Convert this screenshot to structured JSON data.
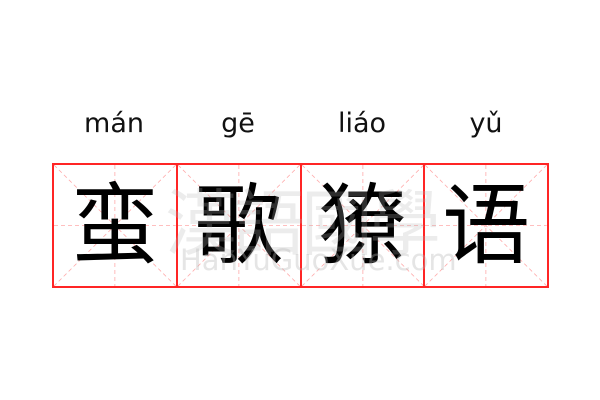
{
  "words": [
    {
      "pinyin": "mán",
      "hanzi": "蛮"
    },
    {
      "pinyin": "gē",
      "hanzi": "歌"
    },
    {
      "pinyin": "liáo",
      "hanzi": "獠"
    },
    {
      "pinyin": "yǔ",
      "hanzi": "语"
    }
  ],
  "watermark": {
    "chinese": "漢語國學",
    "latin": "HanYuGuoXue.com"
  },
  "colors": {
    "grid": "#ff2525",
    "guide": "#ffaaaa",
    "text": "#000000"
  }
}
